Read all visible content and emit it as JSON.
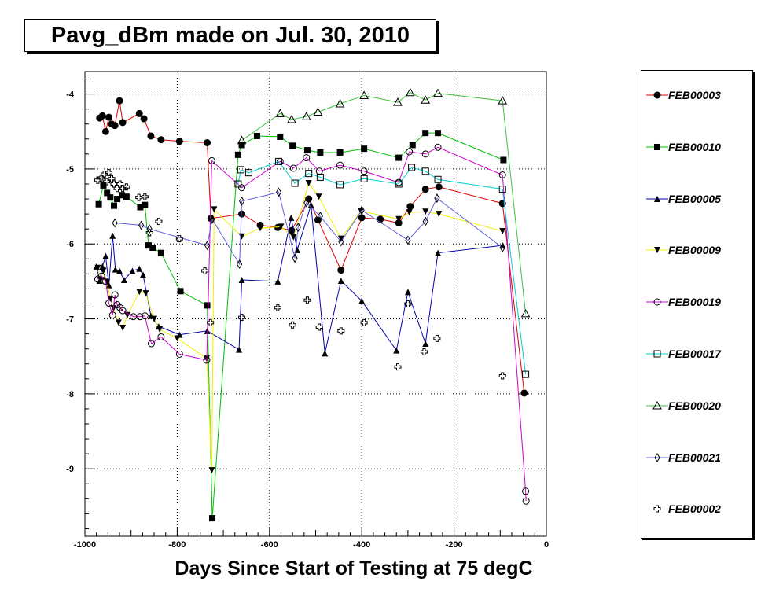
{
  "chart_data": {
    "type": "line",
    "title": "Pavg_dBm made on Jul. 30, 2010",
    "xlabel": "Days Since Start of Testing at 75 degC",
    "ylabel": "",
    "xlim": [
      -1000,
      0
    ],
    "ylim": [
      -9.9,
      -3.7
    ],
    "grid": true,
    "x_ticks": [
      -1000,
      -800,
      -600,
      -400,
      -200,
      0
    ],
    "y_ticks": [
      -4,
      -5,
      -6,
      -7,
      -8,
      -9
    ],
    "legend_position": "right",
    "series": [
      {
        "name": "FEB00003",
        "color": "#e00000",
        "marker": "circle-filled",
        "points": [
          [
            -968,
            -4.32
          ],
          [
            -962,
            -4.29
          ],
          [
            -955,
            -4.5
          ],
          [
            -948,
            -4.31
          ],
          [
            -942,
            -4.4
          ],
          [
            -935,
            -4.42
          ],
          [
            -925,
            -4.09
          ],
          [
            -918,
            -4.38
          ],
          [
            -882,
            -4.26
          ],
          [
            -872,
            -4.33
          ],
          [
            -857,
            -4.56
          ],
          [
            -835,
            -4.61
          ],
          [
            -795,
            -4.63
          ],
          [
            -735,
            -4.65
          ],
          [
            -727,
            -5.66
          ],
          [
            -660,
            -5.6
          ],
          [
            -620,
            -5.75
          ],
          [
            -582,
            -5.78
          ],
          [
            -552,
            -5.82
          ],
          [
            -515,
            -5.4
          ],
          [
            -495,
            -5.68
          ],
          [
            -445,
            -6.35
          ],
          [
            -400,
            -5.65
          ],
          [
            -360,
            -5.67
          ],
          [
            -320,
            -5.72
          ],
          [
            -295,
            -5.5
          ],
          [
            -262,
            -5.27
          ],
          [
            -233,
            -5.24
          ],
          [
            -95,
            -5.46
          ],
          [
            -48,
            -7.99
          ]
        ]
      },
      {
        "name": "FEB00010",
        "color": "#00c000",
        "marker": "square-filled",
        "points": [
          [
            -970,
            -5.47
          ],
          [
            -960,
            -5.22
          ],
          [
            -952,
            -5.32
          ],
          [
            -945,
            -5.38
          ],
          [
            -937,
            -5.49
          ],
          [
            -930,
            -5.4
          ],
          [
            -920,
            -5.35
          ],
          [
            -910,
            -5.37
          ],
          [
            -880,
            -5.51
          ],
          [
            -870,
            -5.48
          ],
          [
            -862,
            -6.02
          ],
          [
            -853,
            -6.05
          ],
          [
            -835,
            -6.12
          ],
          [
            -793,
            -6.63
          ],
          [
            -735,
            -6.82
          ],
          [
            -724,
            -9.66
          ],
          [
            -668,
            -4.81
          ],
          [
            -660,
            -4.68
          ],
          [
            -627,
            -4.56
          ],
          [
            -577,
            -4.57
          ],
          [
            -550,
            -4.69
          ],
          [
            -518,
            -4.75
          ],
          [
            -490,
            -4.78
          ],
          [
            -447,
            -4.78
          ],
          [
            -395,
            -4.73
          ],
          [
            -320,
            -4.85
          ],
          [
            -290,
            -4.68
          ],
          [
            -262,
            -4.52
          ],
          [
            -235,
            -4.52
          ],
          [
            -93,
            -4.88
          ]
        ]
      },
      {
        "name": "FEB00005",
        "color": "#0000b0",
        "marker": "triangle-filled",
        "points": [
          [
            -975,
            -6.3
          ],
          [
            -968,
            -6.49
          ],
          [
            -962,
            -6.3
          ],
          [
            -955,
            -6.16
          ],
          [
            -948,
            -6.55
          ],
          [
            -940,
            -5.89
          ],
          [
            -934,
            -6.34
          ],
          [
            -925,
            -6.36
          ],
          [
            -915,
            -6.48
          ],
          [
            -897,
            -6.36
          ],
          [
            -882,
            -6.33
          ],
          [
            -874,
            -6.41
          ],
          [
            -857,
            -6.96
          ],
          [
            -840,
            -7.1
          ],
          [
            -795,
            -7.21
          ],
          [
            -735,
            -7.16
          ],
          [
            -666,
            -7.41
          ],
          [
            -660,
            -6.48
          ],
          [
            -582,
            -6.5
          ],
          [
            -553,
            -5.65
          ],
          [
            -540,
            -6.08
          ],
          [
            -510,
            -5.48
          ],
          [
            -480,
            -7.46
          ],
          [
            -445,
            -6.49
          ],
          [
            -400,
            -6.76
          ],
          [
            -325,
            -7.42
          ],
          [
            -300,
            -6.64
          ],
          [
            -262,
            -7.33
          ],
          [
            -235,
            -6.12
          ],
          [
            -95,
            -6.02
          ]
        ]
      },
      {
        "name": "FEB00009",
        "color": "#f0f000",
        "marker": "triangle-down-filled",
        "points": [
          [
            -972,
            -6.32
          ],
          [
            -966,
            -6.48
          ],
          [
            -960,
            -6.36
          ],
          [
            -952,
            -6.51
          ],
          [
            -945,
            -6.73
          ],
          [
            -938,
            -6.86
          ],
          [
            -927,
            -7.05
          ],
          [
            -918,
            -7.12
          ],
          [
            -908,
            -6.95
          ],
          [
            -882,
            -6.64
          ],
          [
            -868,
            -6.66
          ],
          [
            -850,
            -7.0
          ],
          [
            -838,
            -7.14
          ],
          [
            -800,
            -7.26
          ],
          [
            -736,
            -7.53
          ],
          [
            -725,
            -9.02
          ],
          [
            -720,
            -5.54
          ],
          [
            -660,
            -5.9
          ],
          [
            -620,
            -5.79
          ],
          [
            -575,
            -5.77
          ],
          [
            -548,
            -5.91
          ],
          [
            -515,
            -5.19
          ],
          [
            -493,
            -5.37
          ],
          [
            -445,
            -5.93
          ],
          [
            -402,
            -5.56
          ],
          [
            -320,
            -5.67
          ],
          [
            -297,
            -5.58
          ],
          [
            -262,
            -5.57
          ],
          [
            -233,
            -5.6
          ],
          [
            -95,
            -5.83
          ]
        ]
      },
      {
        "name": "FEB00019",
        "color": "#d000d0",
        "marker": "circle-open",
        "points": [
          [
            -972,
            -6.47
          ],
          [
            -964,
            -6.43
          ],
          [
            -955,
            -6.5
          ],
          [
            -948,
            -6.79
          ],
          [
            -940,
            -6.95
          ],
          [
            -935,
            -6.68
          ],
          [
            -930,
            -6.81
          ],
          [
            -924,
            -6.85
          ],
          [
            -918,
            -6.89
          ],
          [
            -895,
            -6.97
          ],
          [
            -881,
            -6.97
          ],
          [
            -870,
            -6.96
          ],
          [
            -856,
            -7.33
          ],
          [
            -835,
            -7.24
          ],
          [
            -795,
            -7.47
          ],
          [
            -736,
            -7.55
          ],
          [
            -725,
            -4.89
          ],
          [
            -660,
            -5.25
          ],
          [
            -577,
            -4.9
          ],
          [
            -548,
            -4.99
          ],
          [
            -520,
            -4.85
          ],
          [
            -492,
            -5.03
          ],
          [
            -447,
            -4.95
          ],
          [
            -395,
            -5.03
          ],
          [
            -320,
            -5.18
          ],
          [
            -297,
            -4.77
          ],
          [
            -262,
            -4.8
          ],
          [
            -235,
            -4.71
          ],
          [
            -95,
            -5.08
          ],
          [
            -45,
            -9.3
          ],
          [
            -44,
            -9.43
          ]
        ]
      },
      {
        "name": "FEB00017",
        "color": "#00d0d0",
        "marker": "square-open",
        "points": [
          [
            -668,
            -5.2
          ],
          [
            -662,
            -5.01
          ],
          [
            -645,
            -5.05
          ],
          [
            -580,
            -4.9
          ],
          [
            -545,
            -5.19
          ],
          [
            -515,
            -5.06
          ],
          [
            -490,
            -5.11
          ],
          [
            -447,
            -5.21
          ],
          [
            -395,
            -5.13
          ],
          [
            -320,
            -5.2
          ],
          [
            -292,
            -4.98
          ],
          [
            -262,
            -5.03
          ],
          [
            -235,
            -5.14
          ],
          [
            -95,
            -5.27
          ],
          [
            -45,
            -7.74
          ]
        ]
      },
      {
        "name": "FEB00020",
        "color": "#40c040",
        "marker": "triangle-open",
        "points": [
          [
            -660,
            -4.62
          ],
          [
            -577,
            -4.26
          ],
          [
            -552,
            -4.34
          ],
          [
            -520,
            -4.3
          ],
          [
            -495,
            -4.24
          ],
          [
            -447,
            -4.13
          ],
          [
            -395,
            -4.02
          ],
          [
            -322,
            -4.11
          ],
          [
            -295,
            -3.98
          ],
          [
            -262,
            -4.08
          ],
          [
            -235,
            -3.99
          ],
          [
            -95,
            -4.09
          ],
          [
            -45,
            -6.93
          ]
        ]
      },
      {
        "name": "FEB00021",
        "color": "#6060e0",
        "marker": "diamond-open",
        "points": [
          [
            -935,
            -5.72
          ],
          [
            -878,
            -5.75
          ],
          [
            -860,
            -5.8
          ],
          [
            -735,
            -6.02
          ],
          [
            -724,
            -5.67
          ],
          [
            -665,
            -6.27
          ],
          [
            -660,
            -5.43
          ],
          [
            -580,
            -5.31
          ],
          [
            -545,
            -6.19
          ],
          [
            -538,
            -5.78
          ],
          [
            -520,
            -5.45
          ],
          [
            -490,
            -5.63
          ],
          [
            -445,
            -5.97
          ],
          [
            -400,
            -5.55
          ],
          [
            -300,
            -5.95
          ],
          [
            -262,
            -5.7
          ],
          [
            -237,
            -5.39
          ],
          [
            -95,
            -6.05
          ]
        ]
      },
      {
        "name": "FEB00002",
        "color": "#000000",
        "marker": "cross-open",
        "points": [
          [
            -972,
            -5.15
          ],
          [
            -965,
            -5.12
          ],
          [
            -958,
            -5.07
          ],
          [
            -953,
            -5.17
          ],
          [
            -948,
            -5.05
          ],
          [
            -942,
            -5.13
          ],
          [
            -937,
            -5.2
          ],
          [
            -930,
            -5.26
          ],
          [
            -924,
            -5.2
          ],
          [
            -918,
            -5.26
          ],
          [
            -910,
            -5.24
          ],
          [
            -883,
            -5.38
          ],
          [
            -870,
            -5.37
          ],
          [
            -860,
            -5.85
          ],
          [
            -840,
            -5.7
          ],
          [
            -795,
            -5.93
          ],
          [
            -740,
            -6.36
          ],
          [
            -728,
            -7.05
          ],
          [
            -660,
            -6.98
          ],
          [
            -582,
            -6.85
          ],
          [
            -550,
            -7.08
          ],
          [
            -518,
            -6.75
          ],
          [
            -492,
            -7.11
          ],
          [
            -445,
            -7.16
          ],
          [
            -395,
            -7.05
          ],
          [
            -322,
            -7.64
          ],
          [
            -300,
            -6.8
          ],
          [
            -265,
            -7.44
          ],
          [
            -237,
            -7.26
          ],
          [
            -95,
            -7.76
          ]
        ]
      }
    ]
  }
}
